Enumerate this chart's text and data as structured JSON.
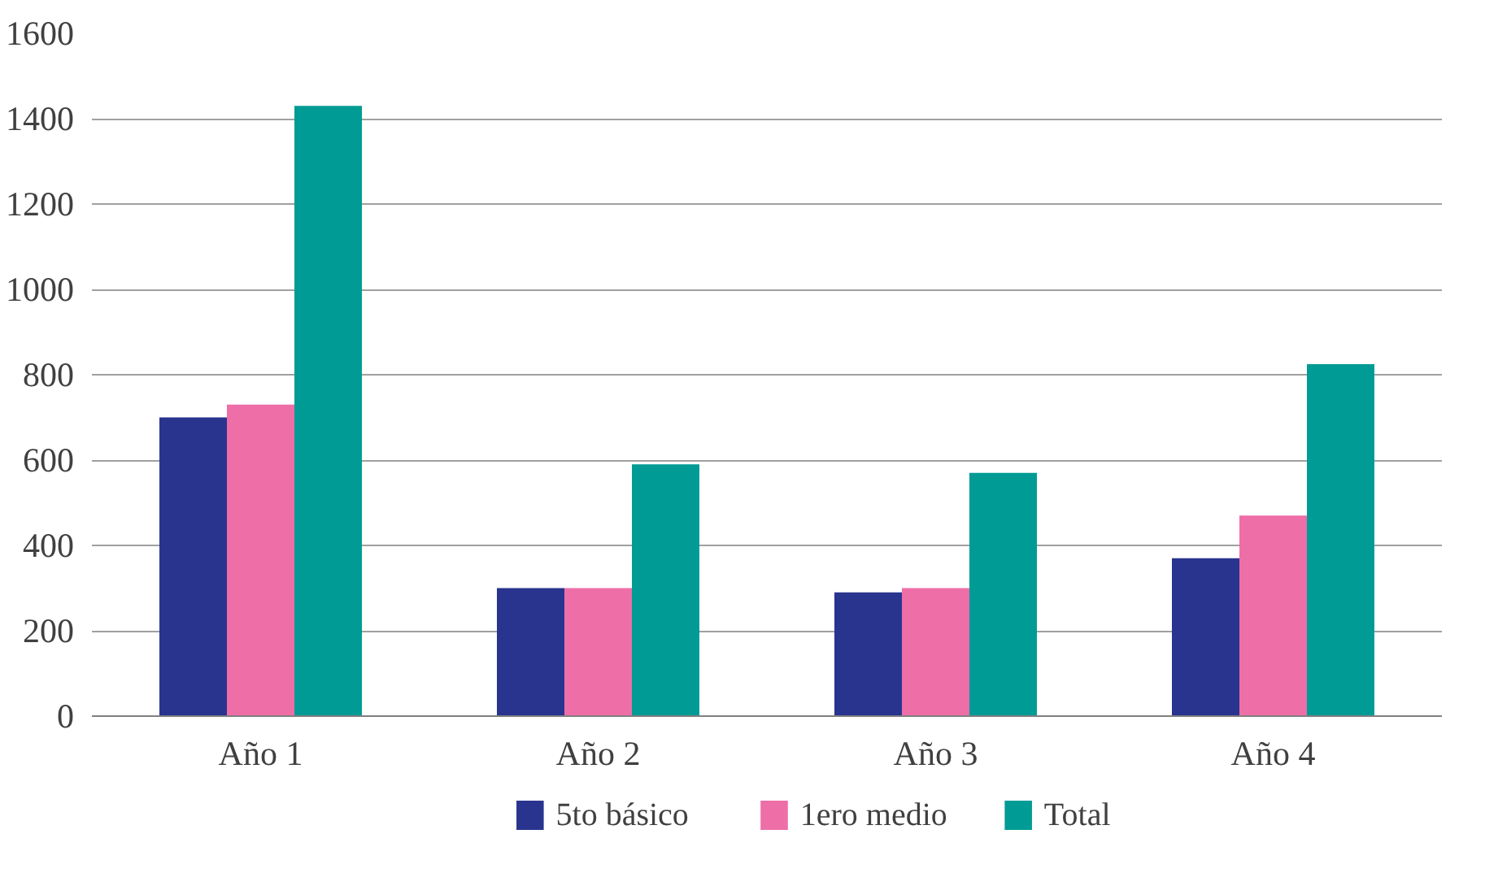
{
  "chart_data": {
    "type": "bar",
    "categories": [
      "Año 1",
      "Año 2",
      "Año 3",
      "Año 4"
    ],
    "series": [
      {
        "name": "5to básico",
        "color": "#29348e",
        "values": [
          700,
          300,
          290,
          370
        ]
      },
      {
        "name": "1ero medio",
        "color": "#ee6ea8",
        "values": [
          730,
          300,
          300,
          470
        ]
      },
      {
        "name": "Total",
        "color": "#009b95",
        "values": [
          1430,
          590,
          570,
          825
        ]
      }
    ],
    "ylim": [
      0,
      1600
    ],
    "yticks": [
      0,
      200,
      400,
      600,
      800,
      1000,
      1200,
      1400,
      1600
    ],
    "grid": "y",
    "legend": "bottom"
  }
}
